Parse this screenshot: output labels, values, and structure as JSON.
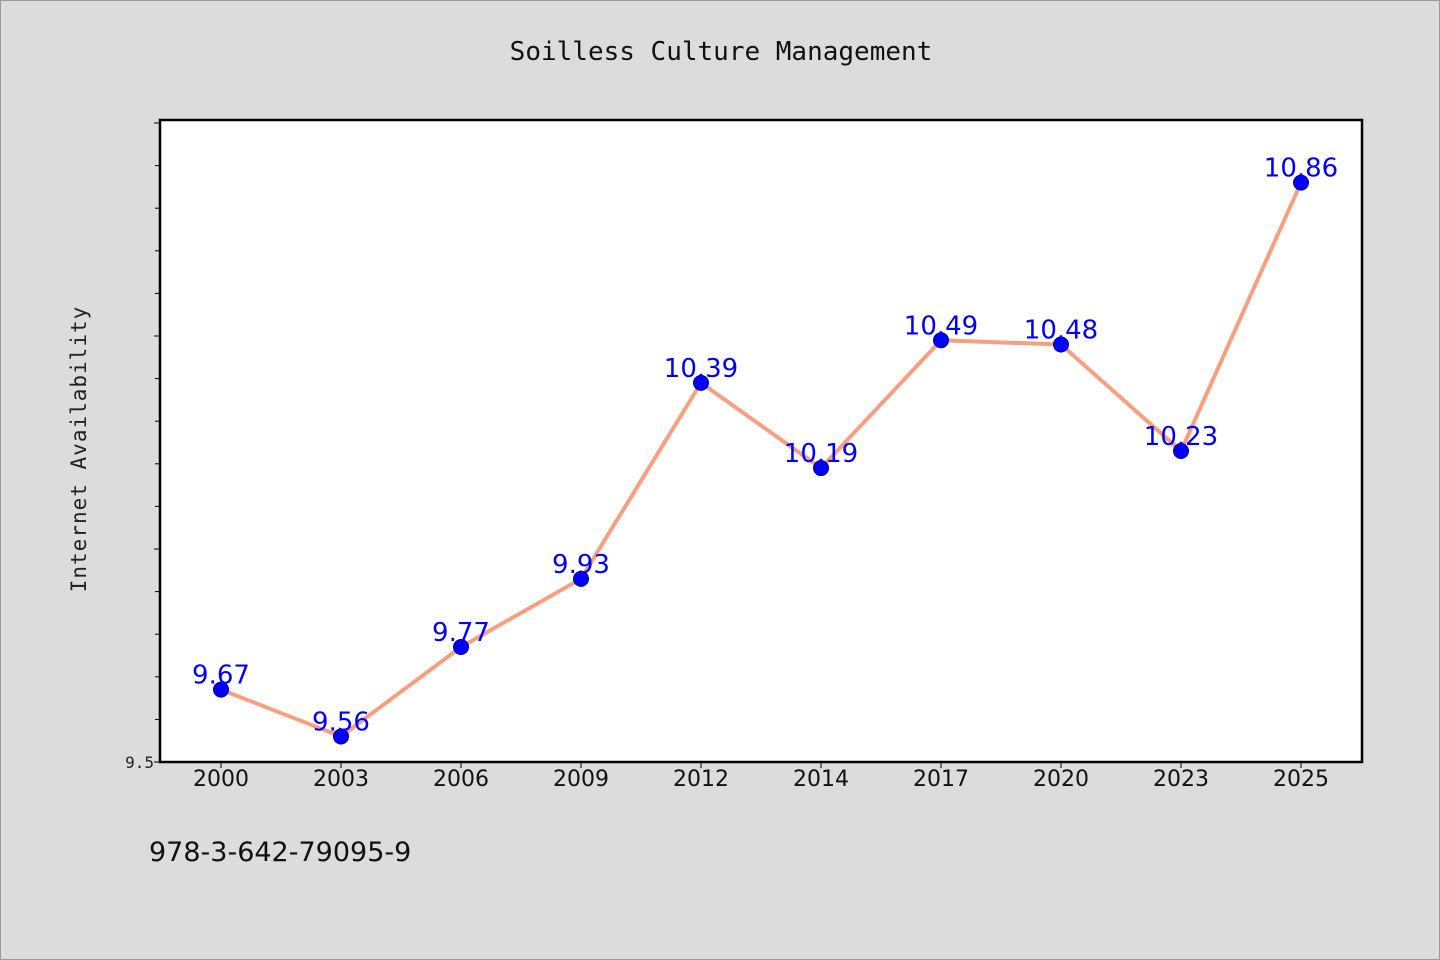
{
  "chart_data": {
    "type": "line",
    "title": "Soilless Culture Management",
    "xlabel": "",
    "ylabel": "Internet Availability",
    "categories": [
      "2000",
      "2003",
      "2006",
      "2009",
      "2012",
      "2014",
      "2017",
      "2020",
      "2023",
      "2025"
    ],
    "series": [
      {
        "values": [
          9.67,
          9.56,
          9.77,
          9.93,
          10.39,
          10.19,
          10.49,
          10.48,
          10.23,
          10.86
        ],
        "labels": [
          "9.67",
          "9.56",
          "9.77",
          "9.93",
          "10.39",
          "10.19",
          "10.49",
          "10.48",
          "10.23",
          "10.86"
        ],
        "line_color": "#f7a07f",
        "marker_color": "#0000ff"
      }
    ],
    "ylim": [
      9.5,
      11.0
    ],
    "y_tick_labels": [
      "9.5"
    ],
    "grid": false,
    "legend": "none"
  },
  "footer_text": "978-3-642-79095-9"
}
